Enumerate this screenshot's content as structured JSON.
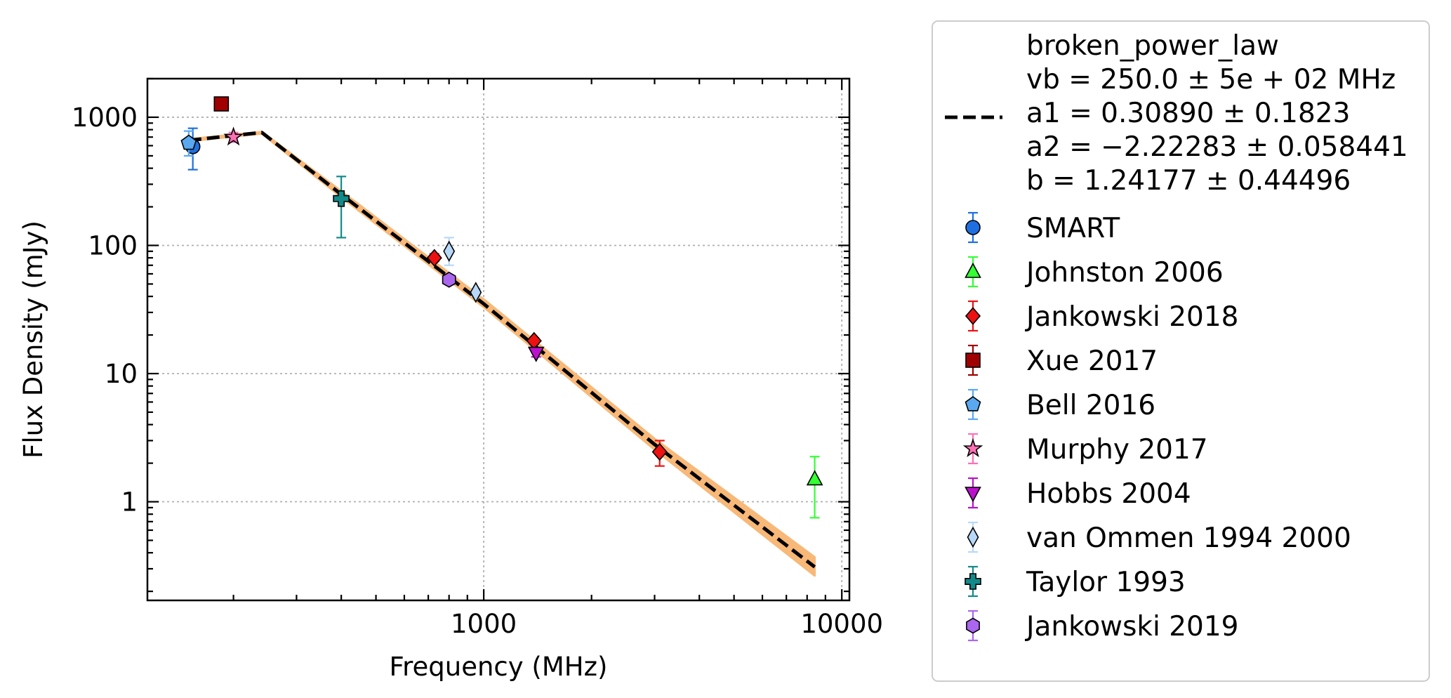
{
  "chart_data": {
    "type": "scatter",
    "xlabel": "Frequency (MHz)",
    "ylabel": "Flux Density (mJy)",
    "xscale": "log",
    "yscale": "log",
    "xlim": [
      115,
      10500
    ],
    "ylim": [
      0.17,
      2000
    ],
    "xticks": [
      {
        "value": 1000,
        "label": "1000"
      },
      {
        "value": 10000,
        "label": "10000"
      }
    ],
    "yticks": [
      {
        "value": 1,
        "label": "1"
      },
      {
        "value": 10,
        "label": "10"
      },
      {
        "value": 100,
        "label": "100"
      },
      {
        "value": 1000,
        "label": "1000"
      }
    ],
    "grid": true,
    "legend_position": "outside-right",
    "fit": {
      "name": "broken_power_law",
      "params_lines": [
        "vb = 250.0 ± 5e + 02 MHz",
        "a1 = 0.30890 ± 0.1823",
        "a2 = −2.22283 ± 0.058441",
        "b = 1.24177 ± 0.44496"
      ],
      "color": "#000000",
      "band_color": "#f8b878",
      "x": [
        150,
        200,
        240,
        400,
        1000,
        3000,
        8400
      ],
      "y": [
        660,
        720,
        760,
        250,
        35,
        2.8,
        0.31
      ],
      "band_x": [
        150,
        240,
        400,
        1000,
        3000,
        8400
      ],
      "band_upper": [
        675,
        770,
        265,
        38,
        3.1,
        0.37
      ],
      "band_lower": [
        650,
        745,
        238,
        33,
        2.55,
        0.265
      ]
    },
    "series": [
      {
        "name": "SMART",
        "marker": "circle",
        "color": "#1f6fe0",
        "points": [
          {
            "x": 154,
            "y": 590,
            "lo": 390,
            "hi": 820
          }
        ]
      },
      {
        "name": "Johnston 2006",
        "marker": "triangle-up",
        "color": "#33ff33",
        "points": [
          {
            "x": 8400,
            "y": 1.5,
            "lo": 0.75,
            "hi": 2.25
          }
        ]
      },
      {
        "name": "Jankowski 2018",
        "marker": "diamond",
        "color": "#ee1111",
        "points": [
          {
            "x": 728,
            "y": 80,
            "lo": 75,
            "hi": 86
          },
          {
            "x": 1382,
            "y": 18,
            "lo": 17,
            "hi": 19
          },
          {
            "x": 3100,
            "y": 2.45,
            "lo": 1.9,
            "hi": 3.0
          }
        ]
      },
      {
        "name": "Xue 2017",
        "marker": "square",
        "color": "#a00000",
        "points": [
          {
            "x": 185,
            "y": 1270,
            "lo": 1240,
            "hi": 1300
          }
        ]
      },
      {
        "name": "Bell 2016",
        "marker": "pentagon",
        "color": "#5aa8f0",
        "points": [
          {
            "x": 150,
            "y": 630,
            "lo": 500,
            "hi": 780
          }
        ]
      },
      {
        "name": "Murphy 2017",
        "marker": "star",
        "color": "#ff6fb4",
        "points": [
          {
            "x": 200,
            "y": 700,
            "lo": 640,
            "hi": 760
          }
        ]
      },
      {
        "name": "Hobbs 2004",
        "marker": "triangle-down",
        "color": "#bb11cc",
        "points": [
          {
            "x": 1400,
            "y": 14.5,
            "lo": 13.5,
            "hi": 15.5
          }
        ]
      },
      {
        "name": "van Ommen 1994 2000",
        "marker": "thin-diamond",
        "color": "#b8d8f8",
        "points": [
          {
            "x": 800,
            "y": 90,
            "lo": 70,
            "hi": 115
          },
          {
            "x": 950,
            "y": 43,
            "lo": 40,
            "hi": 46
          }
        ]
      },
      {
        "name": "Taylor 1993",
        "marker": "plus",
        "color": "#138a8a",
        "points": [
          {
            "x": 400,
            "y": 232,
            "lo": 115,
            "hi": 345
          }
        ]
      },
      {
        "name": "Jankowski 2019",
        "marker": "hexagon",
        "color": "#aa66ee",
        "points": [
          {
            "x": 800,
            "y": 54,
            "lo": 50,
            "hi": 58
          }
        ]
      }
    ]
  }
}
